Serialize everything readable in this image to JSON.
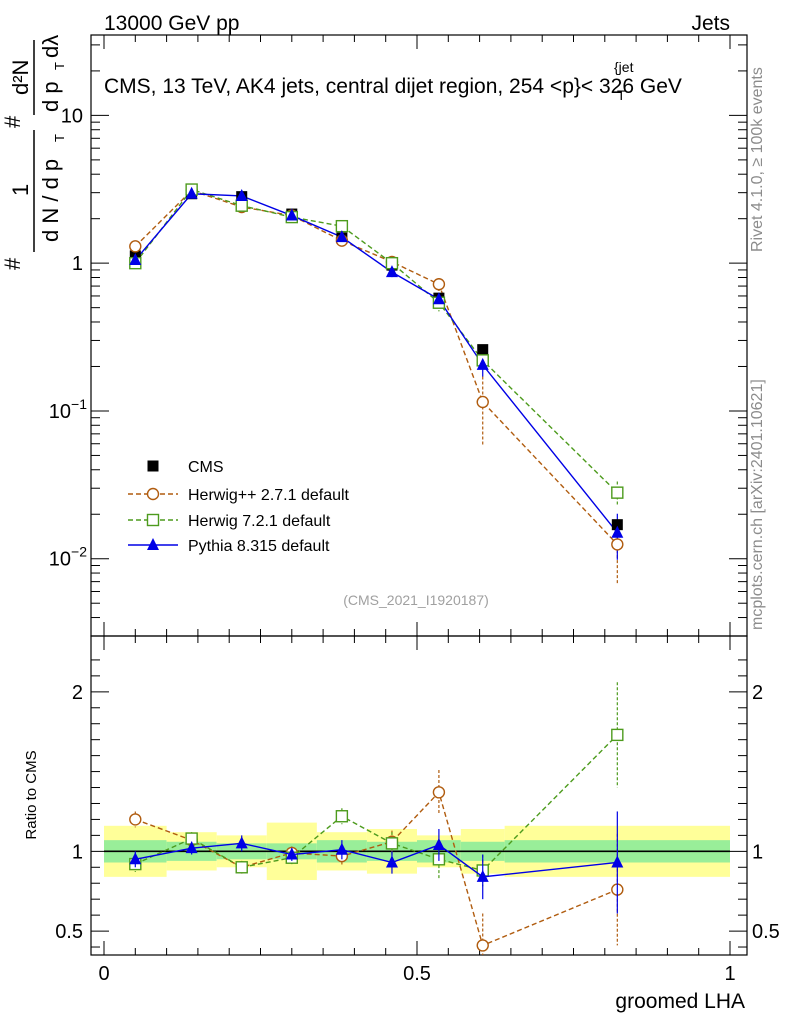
{
  "header": {
    "left": "13000 GeV pp",
    "right": "Jets"
  },
  "side_labels": {
    "rivet": "Rivet 4.1.0, ≥ 100k events",
    "mcplots": "mcplots.cern.ch [arXiv:2401.10621]"
  },
  "chart_data": {
    "type": "line",
    "title": "CMS, 13 TeV, AK4 jets, central dijet region, 254 <",
    "title_pt": "p",
    "title_pt_sup": "{jet",
    "title_pt_sub": "T",
    "title_end": "}< 326 GeV",
    "analysis_tag": "(CMS_2021_I1920187)",
    "xlabel": "groomed LHA",
    "ylabel_ratio": "Ratio to CMS",
    "ylabel_parts": {
      "hash1": "#",
      "one": "1",
      "dN": "d N / d p",
      "T": "T",
      "hash2": "#",
      "dpt_dlambda": "d p",
      "T2": "T",
      "dl": "dλ",
      "d2N": "d²N"
    },
    "xlim": [
      0,
      1
    ],
    "ylim_main": [
      0.003,
      35
    ],
    "ylim_ratio": [
      0.35,
      2.35
    ],
    "xticks": [
      {
        "v": 0,
        "label": "0"
      },
      {
        "v": 0.5,
        "label": "0.5"
      },
      {
        "v": 1,
        "label": "1"
      }
    ],
    "yticks_main": [
      {
        "v": 0.01,
        "base": "10",
        "exp": "−2"
      },
      {
        "v": 0.1,
        "base": "10",
        "exp": "−1"
      },
      {
        "v": 1,
        "base": "1",
        "exp": ""
      },
      {
        "v": 10,
        "base": "10",
        "exp": ""
      }
    ],
    "yticks_ratio": [
      {
        "v": 0.5,
        "label": "0.5"
      },
      {
        "v": 1,
        "label": "1"
      },
      {
        "v": 2,
        "label": "2"
      }
    ],
    "bin_edges": [
      0.0,
      0.1,
      0.18,
      0.26,
      0.34,
      0.42,
      0.5,
      0.57,
      0.64,
      1.0
    ],
    "x": [
      0.05,
      0.14,
      0.22,
      0.3,
      0.38,
      0.46,
      0.535,
      0.605,
      0.82
    ],
    "cms": {
      "name": "CMS",
      "values": [
        1.12,
        2.95,
        2.82,
        2.15,
        1.48,
        0.97,
        0.58,
        0.26,
        0.017
      ],
      "ratio_band_inner": [
        0.07,
        0.06,
        0.05,
        0.05,
        0.07,
        0.06,
        0.07,
        0.06,
        0.07
      ],
      "ratio_band_outer": [
        0.16,
        0.12,
        0.1,
        0.18,
        0.12,
        0.14,
        0.1,
        0.14,
        0.16
      ]
    },
    "series": [
      {
        "name": "Herwig++ 2.7.1 default",
        "color": "#b05c0f",
        "marker": "circle",
        "dashed": true,
        "values": [
          1.3,
          3.1,
          2.4,
          2.1,
          1.42,
          1.02,
          0.72,
          0.115,
          0.0125
        ],
        "ratio": [
          1.2,
          1.07,
          0.9,
          0.99,
          0.97,
          1.06,
          1.37,
          0.41,
          0.76
        ],
        "ratio_err": [
          0.05,
          0.04,
          0.04,
          0.04,
          0.06,
          0.07,
          0.14,
          0.2,
          0.35
        ]
      },
      {
        "name": "Herwig 7.2.1 default",
        "color": "#4d9b1d",
        "marker": "square",
        "dashed": true,
        "values": [
          1.0,
          3.15,
          2.45,
          2.05,
          1.78,
          1.0,
          0.54,
          0.22,
          0.028
        ],
        "ratio": [
          0.92,
          1.08,
          0.9,
          0.96,
          1.22,
          1.05,
          0.95,
          0.88,
          1.73
        ],
        "ratio_err": [
          0.05,
          0.04,
          0.03,
          0.04,
          0.05,
          0.07,
          0.12,
          0.1,
          0.33
        ]
      },
      {
        "name": "Pythia 8.315 default",
        "color": "#0000e6",
        "marker": "triangle",
        "dashed": false,
        "values": [
          1.05,
          2.95,
          2.85,
          2.1,
          1.5,
          0.87,
          0.57,
          0.205,
          0.015
        ],
        "ratio": [
          0.95,
          1.02,
          1.05,
          0.98,
          1.01,
          0.93,
          1.04,
          0.84,
          0.93
        ],
        "ratio_err": [
          0.05,
          0.04,
          0.05,
          0.04,
          0.06,
          0.07,
          0.1,
          0.14,
          0.32
        ]
      }
    ]
  }
}
